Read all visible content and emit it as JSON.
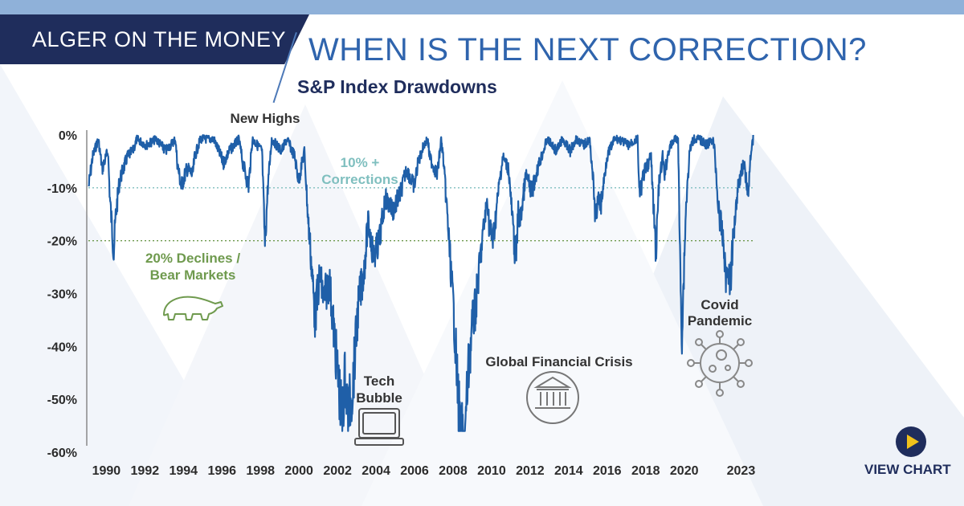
{
  "header": {
    "brand": "ALGER ON THE MONEY",
    "headline": "WHEN IS THE NEXT CORRECTION?",
    "subtitle": "S&P Index Drawdowns"
  },
  "cta": {
    "label": "VIEW CHART",
    "icon": "play-icon"
  },
  "colors": {
    "navy": "#1f2d5c",
    "headline_blue": "#2f64ad",
    "line_blue": "#1f5fa8",
    "teal": "#7fbfbf",
    "green": "#6f9a4e",
    "gray": "#595959",
    "play_yellow": "#f1c21b"
  },
  "chart_data": {
    "type": "line",
    "title": "S&P Index Drawdowns",
    "xlabel": "",
    "ylabel": "",
    "x_ticks": [
      "1990",
      "1992",
      "1994",
      "1996",
      "1998",
      "2000",
      "2002",
      "2004",
      "2006",
      "2008",
      "2010",
      "2012",
      "2014",
      "2016",
      "2018",
      "2020",
      "2023"
    ],
    "y_ticks": [
      "0%",
      "-10%",
      "-20%",
      "-30%",
      "-40%",
      "-50%",
      "-60%"
    ],
    "xlim": [
      1989.4,
      2024.1
    ],
    "ylim": [
      -60,
      0
    ],
    "grid": false,
    "series": [
      {
        "x": [
          1989.5,
          1989.7,
          1990.0,
          1990.2,
          1990.5,
          1990.6,
          1990.8,
          1990.9,
          1991.1,
          1991.3,
          1991.5,
          1991.8,
          1992.0,
          1992.5,
          1993.0,
          1993.5,
          1994.0,
          1994.1,
          1994.3,
          1994.6,
          1994.9,
          1995.0,
          1995.3,
          1996.0,
          1996.5,
          1996.8,
          1997.3,
          1997.5,
          1997.8,
          1998.0,
          1998.5,
          1998.65,
          1998.8,
          1999.0,
          1999.5,
          1999.8,
          2000.2,
          2000.4,
          2000.7,
          2000.9,
          2001.0,
          2001.25,
          2001.5,
          2001.7,
          2002.0,
          2002.3,
          2002.5,
          2002.65,
          2002.8,
          2002.9,
          2003.0,
          2003.2,
          2003.5,
          2003.8,
          2004.0,
          2004.3,
          2004.6,
          2004.9,
          2005.3,
          2005.7,
          2006.0,
          2006.4,
          2006.6,
          2006.9,
          2007.1,
          2007.2,
          2007.6,
          2007.8,
          2007.9,
          2008.1,
          2008.3,
          2008.5,
          2008.7,
          2008.85,
          2008.9,
          2009.0,
          2009.1,
          2009.2,
          2009.4,
          2009.6,
          2009.9,
          2010.2,
          2010.3,
          2010.5,
          2010.8,
          2011.0,
          2011.3,
          2011.6,
          2011.7,
          2011.8,
          2011.9,
          2012.2,
          2012.5,
          2012.8,
          2013.0,
          2013.3,
          2013.8,
          2014.1,
          2014.5,
          2014.8,
          2015.2,
          2015.5,
          2015.65,
          2015.8,
          2016.0,
          2016.1,
          2016.4,
          2016.8,
          2017.0,
          2017.5,
          2018.0,
          2018.1,
          2018.3,
          2018.7,
          2018.8,
          2018.95,
          2019.1,
          2019.3,
          2019.4,
          2019.6,
          2019.9,
          2020.1,
          2020.2,
          2020.3,
          2020.5,
          2020.7,
          2020.9,
          2021.2,
          2021.6,
          2021.9,
          2022.0,
          2022.2,
          2022.45,
          2022.6,
          2022.7,
          2022.8,
          2023.0,
          2023.2,
          2023.5,
          2023.6,
          2023.75,
          2023.85,
          2024.0
        ],
        "y": [
          -8,
          -3,
          0,
          -5,
          -2,
          -10,
          -19,
          -13,
          -7,
          -5,
          -3,
          -2,
          0,
          -1,
          0,
          -2,
          0,
          -4,
          -8,
          -5,
          -6,
          -3,
          0,
          0,
          -4,
          -2,
          0,
          -4,
          -8,
          0,
          -2,
          -18,
          -8,
          0,
          -2,
          0,
          -3,
          -7,
          -2,
          -14,
          -18,
          -30,
          -23,
          -27,
          -24,
          -35,
          -42,
          -48,
          -40,
          -44,
          -46,
          -42,
          -28,
          -22,
          -14,
          -20,
          -17,
          -10,
          -12,
          -9,
          -5,
          -8,
          -4,
          -1,
          0,
          -3,
          -6,
          0,
          -3,
          -12,
          -22,
          -32,
          -45,
          -52,
          -50,
          -55,
          -46,
          -40,
          -32,
          -28,
          -18,
          -10,
          -15,
          -17,
          -8,
          -3,
          -5,
          -18,
          -20,
          -12,
          -14,
          -6,
          -9,
          -5,
          -3,
          0,
          -2,
          0,
          -2,
          0,
          -1,
          0,
          -5,
          -13,
          -10,
          -11,
          -3,
          0,
          0,
          -1,
          0,
          -10,
          -6,
          -3,
          -10,
          -19,
          -8,
          -3,
          -6,
          -2,
          0,
          0,
          -20,
          -33,
          -12,
          -2,
          0,
          0,
          -1,
          0,
          -2,
          -12,
          -17,
          -24,
          -21,
          -25,
          -15,
          -8,
          -4,
          -6,
          -10,
          -3,
          0
        ]
      }
    ],
    "reference_lines": [
      {
        "y": -10,
        "label": "10% + Corrections",
        "color": "teal"
      },
      {
        "y": -20,
        "label": "20% Declines / Bear Markets",
        "color": "green"
      }
    ],
    "annotations": {
      "new_highs": "New Highs",
      "corrections": [
        "10% +",
        "Corrections"
      ],
      "bear": [
        "20% Declines /",
        "Bear Markets"
      ],
      "tech": [
        "Tech",
        "Bubble"
      ],
      "gfc": "Global Financial Crisis",
      "covid": [
        "Covid",
        "Pandemic"
      ]
    },
    "icons": [
      "bear-icon",
      "computer-icon",
      "bank-building-icon",
      "virus-icon"
    ]
  }
}
